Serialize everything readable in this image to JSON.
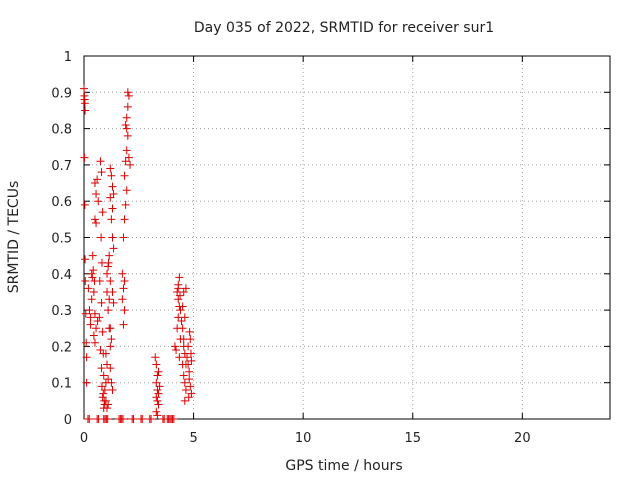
{
  "chart_data": {
    "type": "scatter",
    "title": "Day 035 of 2022, SRMTID for receiver sur1",
    "xlabel": "GPS time / hours",
    "ylabel": "SRMTID / TECUs",
    "xlim": [
      0,
      24
    ],
    "ylim": [
      0,
      1
    ],
    "xticks": [
      0,
      5,
      10,
      15,
      20
    ],
    "yticks": [
      0,
      0.1,
      0.2,
      0.3,
      0.4,
      0.5,
      0.6,
      0.7,
      0.8,
      0.9,
      1
    ],
    "xtick_labels": [
      "0",
      "5",
      "10",
      "15",
      "20"
    ],
    "ytick_labels": [
      "0",
      "0.1",
      "0.2",
      "0.3",
      "0.4",
      "0.5",
      "0.6",
      "0.7",
      "0.8",
      "0.9",
      "1"
    ],
    "grid": true,
    "marker": "+",
    "series": [
      {
        "name": "sur1",
        "color": "#dd0000",
        "points": [
          [
            0.0,
            0.91
          ],
          [
            0.02,
            0.89
          ],
          [
            0.04,
            0.87
          ],
          [
            0.05,
            0.85
          ],
          [
            0.03,
            0.88
          ],
          [
            0.02,
            0.72
          ],
          [
            0.04,
            0.59
          ],
          [
            0.05,
            0.44
          ],
          [
            0.06,
            0.38
          ],
          [
            0.08,
            0.29
          ],
          [
            0.1,
            0.21
          ],
          [
            0.12,
            0.17
          ],
          [
            0.12,
            0.1
          ],
          [
            0.2,
            0.36
          ],
          [
            0.25,
            0.3
          ],
          [
            0.3,
            0.26
          ],
          [
            0.35,
            0.4
          ],
          [
            0.38,
            0.39
          ],
          [
            0.4,
            0.45
          ],
          [
            0.45,
            0.35
          ],
          [
            0.5,
            0.29
          ],
          [
            0.55,
            0.25
          ],
          [
            0.42,
            0.41
          ],
          [
            0.48,
            0.38
          ],
          [
            0.35,
            0.33
          ],
          [
            0.3,
            0.28
          ],
          [
            0.5,
            0.55
          ],
          [
            0.55,
            0.54
          ],
          [
            0.5,
            0.65
          ],
          [
            0.6,
            0.66
          ],
          [
            0.55,
            0.62
          ],
          [
            0.65,
            0.6
          ],
          [
            0.45,
            0.23
          ],
          [
            0.5,
            0.21
          ],
          [
            0.62,
            0.27
          ],
          [
            0.7,
            0.28
          ],
          [
            0.75,
            0.71
          ],
          [
            0.8,
            0.68
          ],
          [
            0.85,
            0.57
          ],
          [
            0.78,
            0.5
          ],
          [
            0.82,
            0.43
          ],
          [
            0.72,
            0.38
          ],
          [
            0.8,
            0.32
          ],
          [
            0.85,
            0.24
          ],
          [
            0.75,
            0.19
          ],
          [
            0.88,
            0.18
          ],
          [
            0.8,
            0.14
          ],
          [
            0.9,
            0.12
          ],
          [
            0.82,
            0.09
          ],
          [
            0.88,
            0.07
          ],
          [
            0.92,
            0.05
          ],
          [
            0.95,
            0.04
          ],
          [
            0.85,
            0.06
          ],
          [
            0.9,
            0.03
          ],
          [
            0.95,
            0.08
          ],
          [
            1.0,
            0.1
          ],
          [
            1.0,
            0.18
          ],
          [
            1.05,
            0.15
          ],
          [
            1.1,
            0.11
          ],
          [
            1.0,
            0.05
          ],
          [
            1.05,
            0.03
          ],
          [
            1.1,
            0.04
          ],
          [
            1.05,
            0.35
          ],
          [
            1.1,
            0.3
          ],
          [
            1.15,
            0.25
          ],
          [
            1.2,
            0.2
          ],
          [
            1.15,
            0.33
          ],
          [
            1.2,
            0.38
          ],
          [
            1.1,
            0.42
          ],
          [
            1.15,
            0.45
          ],
          [
            1.05,
            0.4
          ],
          [
            1.12,
            0.43
          ],
          [
            1.2,
            0.61
          ],
          [
            1.25,
            0.67
          ],
          [
            1.3,
            0.64
          ],
          [
            1.2,
            0.69
          ],
          [
            1.25,
            0.55
          ],
          [
            1.3,
            0.5
          ],
          [
            1.35,
            0.47
          ],
          [
            1.3,
            0.58
          ],
          [
            1.35,
            0.62
          ],
          [
            1.3,
            0.35
          ],
          [
            1.35,
            0.32
          ],
          [
            1.2,
            0.25
          ],
          [
            1.25,
            0.1
          ],
          [
            1.3,
            0.08
          ],
          [
            1.2,
            0.14
          ],
          [
            1.25,
            0.22
          ],
          [
            1.75,
            0.4
          ],
          [
            1.8,
            0.36
          ],
          [
            1.85,
            0.3
          ],
          [
            1.8,
            0.26
          ],
          [
            1.75,
            0.33
          ],
          [
            1.85,
            0.38
          ],
          [
            1.8,
            0.5
          ],
          [
            1.85,
            0.55
          ],
          [
            1.9,
            0.59
          ],
          [
            1.95,
            0.63
          ],
          [
            1.85,
            0.67
          ],
          [
            1.9,
            0.71
          ],
          [
            1.95,
            0.74
          ],
          [
            2.0,
            0.78
          ],
          [
            1.9,
            0.81
          ],
          [
            1.95,
            0.83
          ],
          [
            2.0,
            0.86
          ],
          [
            2.05,
            0.89
          ],
          [
            2.0,
            0.9
          ],
          [
            1.95,
            0.8
          ],
          [
            2.05,
            0.72
          ],
          [
            2.1,
            0.7
          ],
          [
            3.25,
            0.17
          ],
          [
            3.3,
            0.15
          ],
          [
            3.35,
            0.12
          ],
          [
            3.3,
            0.1
          ],
          [
            3.35,
            0.08
          ],
          [
            3.4,
            0.07
          ],
          [
            3.35,
            0.05
          ],
          [
            3.4,
            0.04
          ],
          [
            3.3,
            0.02
          ],
          [
            3.35,
            0.01
          ],
          [
            3.4,
            0.13
          ],
          [
            3.45,
            0.09
          ],
          [
            3.3,
            0.06
          ],
          [
            4.2,
            0.19
          ],
          [
            4.15,
            0.2
          ],
          [
            4.25,
            0.25
          ],
          [
            4.3,
            0.28
          ],
          [
            4.35,
            0.31
          ],
          [
            4.25,
            0.35
          ],
          [
            4.3,
            0.37
          ],
          [
            4.35,
            0.39
          ],
          [
            4.3,
            0.33
          ],
          [
            4.4,
            0.3
          ],
          [
            4.45,
            0.27
          ],
          [
            4.4,
            0.22
          ],
          [
            4.35,
            0.17
          ],
          [
            4.3,
            0.36
          ],
          [
            4.38,
            0.34
          ],
          [
            4.5,
            0.25
          ],
          [
            4.55,
            0.22
          ],
          [
            4.6,
            0.18
          ],
          [
            4.5,
            0.15
          ],
          [
            4.55,
            0.12
          ],
          [
            4.6,
            0.1
          ],
          [
            4.65,
            0.08
          ],
          [
            4.6,
            0.05
          ],
          [
            4.55,
            0.2
          ],
          [
            4.65,
            0.15
          ],
          [
            4.6,
            0.28
          ],
          [
            4.55,
            0.35
          ],
          [
            4.65,
            0.36
          ],
          [
            4.5,
            0.31
          ],
          [
            4.7,
            0.17
          ],
          [
            4.75,
            0.15
          ],
          [
            4.8,
            0.13
          ],
          [
            4.85,
            0.22
          ],
          [
            4.75,
            0.2
          ],
          [
            4.8,
            0.11
          ],
          [
            4.85,
            0.09
          ],
          [
            4.9,
            0.07
          ],
          [
            4.88,
            0.18
          ],
          [
            4.82,
            0.24
          ],
          [
            4.78,
            0.06
          ],
          [
            4.9,
            0.16
          ],
          [
            0.18,
            0.0
          ],
          [
            0.24,
            0.0
          ],
          [
            0.6,
            0.0
          ],
          [
            0.66,
            0.0
          ],
          [
            0.9,
            0.0
          ],
          [
            0.96,
            0.0
          ],
          [
            1.02,
            0.0
          ],
          [
            1.08,
            0.0
          ],
          [
            1.6,
            0.0
          ],
          [
            1.66,
            0.0
          ],
          [
            1.72,
            0.0
          ],
          [
            1.78,
            0.0
          ],
          [
            2.2,
            0.0
          ],
          [
            2.26,
            0.0
          ],
          [
            2.6,
            0.0
          ],
          [
            2.66,
            0.0
          ],
          [
            3.0,
            0.0
          ],
          [
            3.06,
            0.0
          ],
          [
            3.6,
            0.0
          ],
          [
            3.66,
            0.0
          ],
          [
            3.8,
            0.0
          ],
          [
            3.86,
            0.0
          ],
          [
            3.92,
            0.0
          ],
          [
            3.98,
            0.0
          ],
          [
            4.04,
            0.0
          ],
          [
            4.1,
            0.0
          ]
        ]
      }
    ]
  }
}
